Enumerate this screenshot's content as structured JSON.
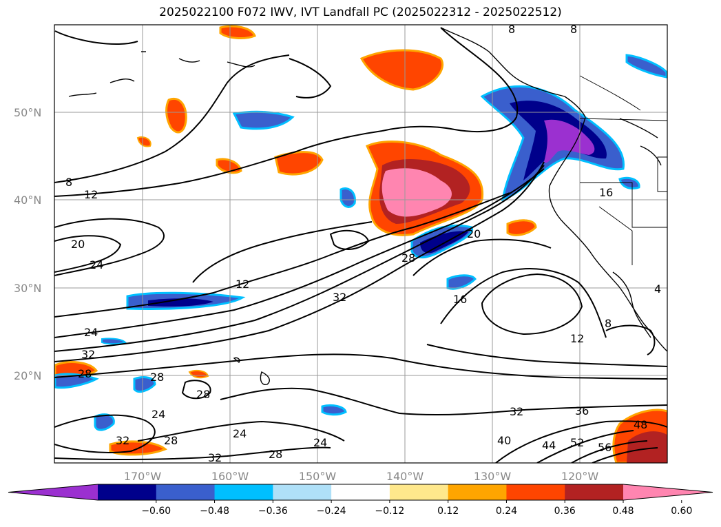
{
  "title": "2025022100 F072 IWV, IVT Landfall PC (2025022312 - 2025022512)",
  "lat_labels": [
    "50°N",
    "40°N",
    "30°N",
    "20°N"
  ],
  "lon_labels": [
    "170°W",
    "160°W",
    "150°W",
    "140°W",
    "130°W",
    "120°W"
  ],
  "colorbar": {
    "ticks": [
      "−0.60",
      "−0.48",
      "−0.36",
      "−0.24",
      "−0.12",
      "0.12",
      "0.24",
      "0.36",
      "0.48",
      "0.60"
    ],
    "colors": [
      "#9b30d0",
      "#00008b",
      "#3a5fcd",
      "#00bfff",
      "#afe0f8",
      "#ffffff",
      "#ffe88c",
      "#ffa500",
      "#ff4500",
      "#b22222",
      "#ff85b0"
    ]
  },
  "contour_labels": [
    "8",
    "12",
    "20",
    "24",
    "12",
    "32",
    "28",
    "20",
    "16",
    "12",
    "8",
    "4",
    "16",
    "24",
    "32",
    "28",
    "28",
    "24",
    "28",
    "32",
    "24",
    "24",
    "28",
    "32",
    "28",
    "32",
    "36",
    "40",
    "44",
    "52",
    "56",
    "48",
    "8",
    "8"
  ]
}
